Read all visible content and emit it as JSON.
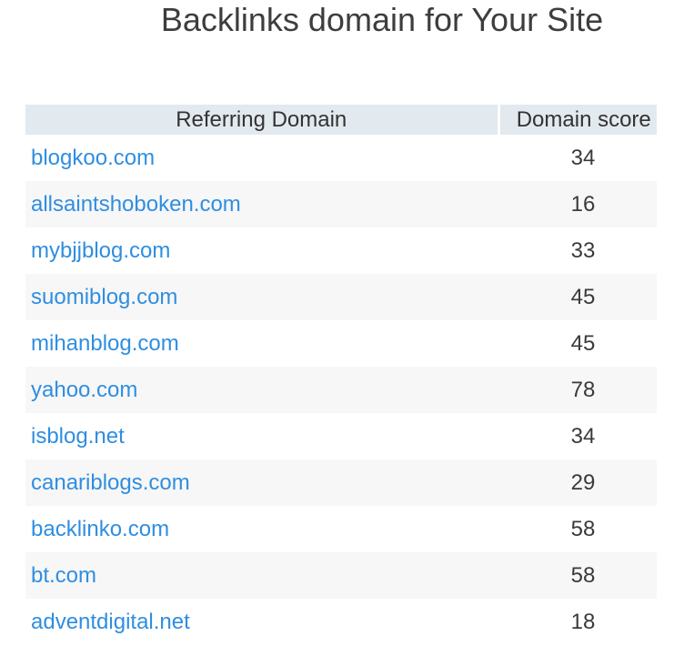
{
  "page": {
    "title": "Backlinks domain for Your Site"
  },
  "table": {
    "header": {
      "referring_domain": "Referring Domain",
      "domain_score": "Domain score"
    },
    "rows": [
      {
        "domain": "blogkoo.com",
        "score": "34"
      },
      {
        "domain": "allsaintshoboken.com",
        "score": "16"
      },
      {
        "domain": "mybjjblog.com",
        "score": "33"
      },
      {
        "domain": "suomiblog.com",
        "score": "45"
      },
      {
        "domain": "mihanblog.com",
        "score": "45"
      },
      {
        "domain": "yahoo.com",
        "score": "78"
      },
      {
        "domain": "isblog.net",
        "score": "34"
      },
      {
        "domain": "canariblogs.com",
        "score": "29"
      },
      {
        "domain": "backlinko.com",
        "score": "58"
      },
      {
        "domain": "bt.com",
        "score": "58"
      },
      {
        "domain": "adventdigital.net",
        "score": "18"
      }
    ]
  },
  "colors": {
    "header_bg": "#e2e9ef",
    "row_stripe": "#f7f7f7",
    "link_blue": "#2f8ee0",
    "heading_text": "#3d3d3d",
    "body_text": "#3a3a3a"
  },
  "chart_data": {
    "type": "table",
    "title": "Backlinks domain for Your Site",
    "columns": [
      "Referring Domain",
      "Domain score"
    ],
    "rows": [
      [
        "blogkoo.com",
        34
      ],
      [
        "allsaintshoboken.com",
        16
      ],
      [
        "mybjjblog.com",
        33
      ],
      [
        "suomiblog.com",
        45
      ],
      [
        "mihanblog.com",
        45
      ],
      [
        "yahoo.com",
        78
      ],
      [
        "isblog.net",
        34
      ],
      [
        "canariblogs.com",
        29
      ],
      [
        "backlinko.com",
        58
      ],
      [
        "bt.com",
        58
      ],
      [
        "adventdigital.net",
        18
      ]
    ]
  }
}
